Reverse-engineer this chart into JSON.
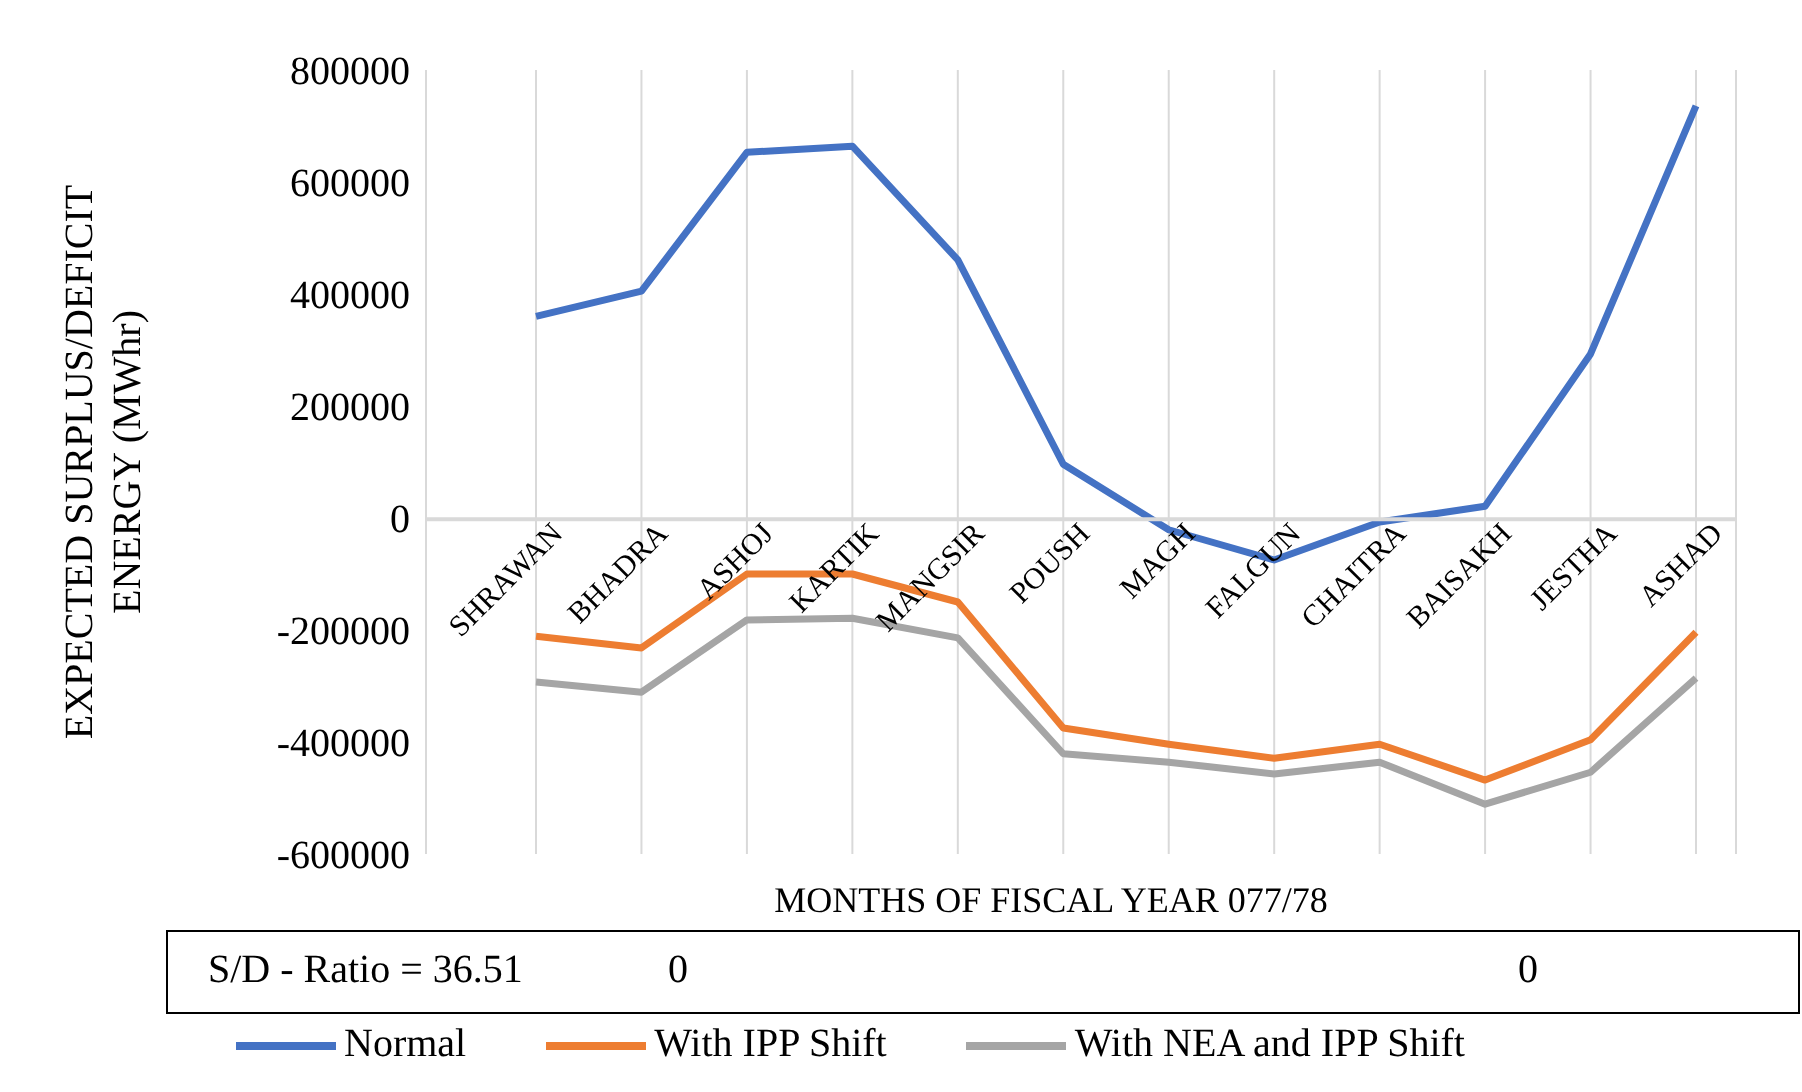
{
  "chart_data": {
    "type": "line",
    "xlabel": "MONTHS OF FISCAL YEAR 077/78",
    "ylabel": "EXPECTED SURPLUS/DEFICIT ENERGY (MWhr)",
    "categories": [
      "SHRAWAN",
      "BHADRA",
      "ASHOJ",
      "KARTIK",
      "MANGSIR",
      "POUSH",
      "MAGH",
      "FALGUN",
      "CHAITRA",
      "BAISAKH",
      "JESTHA",
      "ASHAD"
    ],
    "series": [
      {
        "name": "Normal",
        "color": "#4472c4",
        "values": [
          360000,
          405000,
          653000,
          664000,
          461000,
          96000,
          -21000,
          -75000,
          -7000,
          21000,
          293000,
          736000
        ]
      },
      {
        "name": "With IPP Shift",
        "color": "#ed7d31",
        "values": [
          -211000,
          -232000,
          -100000,
          -100000,
          -150000,
          -375000,
          -404000,
          -429000,
          -404000,
          -468000,
          -396000,
          -204000
        ]
      },
      {
        "name": "With NEA and IPP Shift",
        "color": "#a5a5a5",
        "values": [
          -293000,
          -311000,
          -182000,
          -179000,
          -214000,
          -421000,
          -436000,
          -457000,
          -436000,
          -511000,
          -454000,
          -286000
        ]
      }
    ],
    "ylim": [
      -600000,
      800000
    ],
    "yticks": [
      -600000,
      -400000,
      -200000,
      0,
      200000,
      400000,
      600000,
      800000
    ],
    "grid": "x",
    "legend": "bottom",
    "marker": "none",
    "line_style": "solid",
    "annotations": [
      "S/D - Ratio = 36.51",
      "0",
      "0"
    ]
  }
}
